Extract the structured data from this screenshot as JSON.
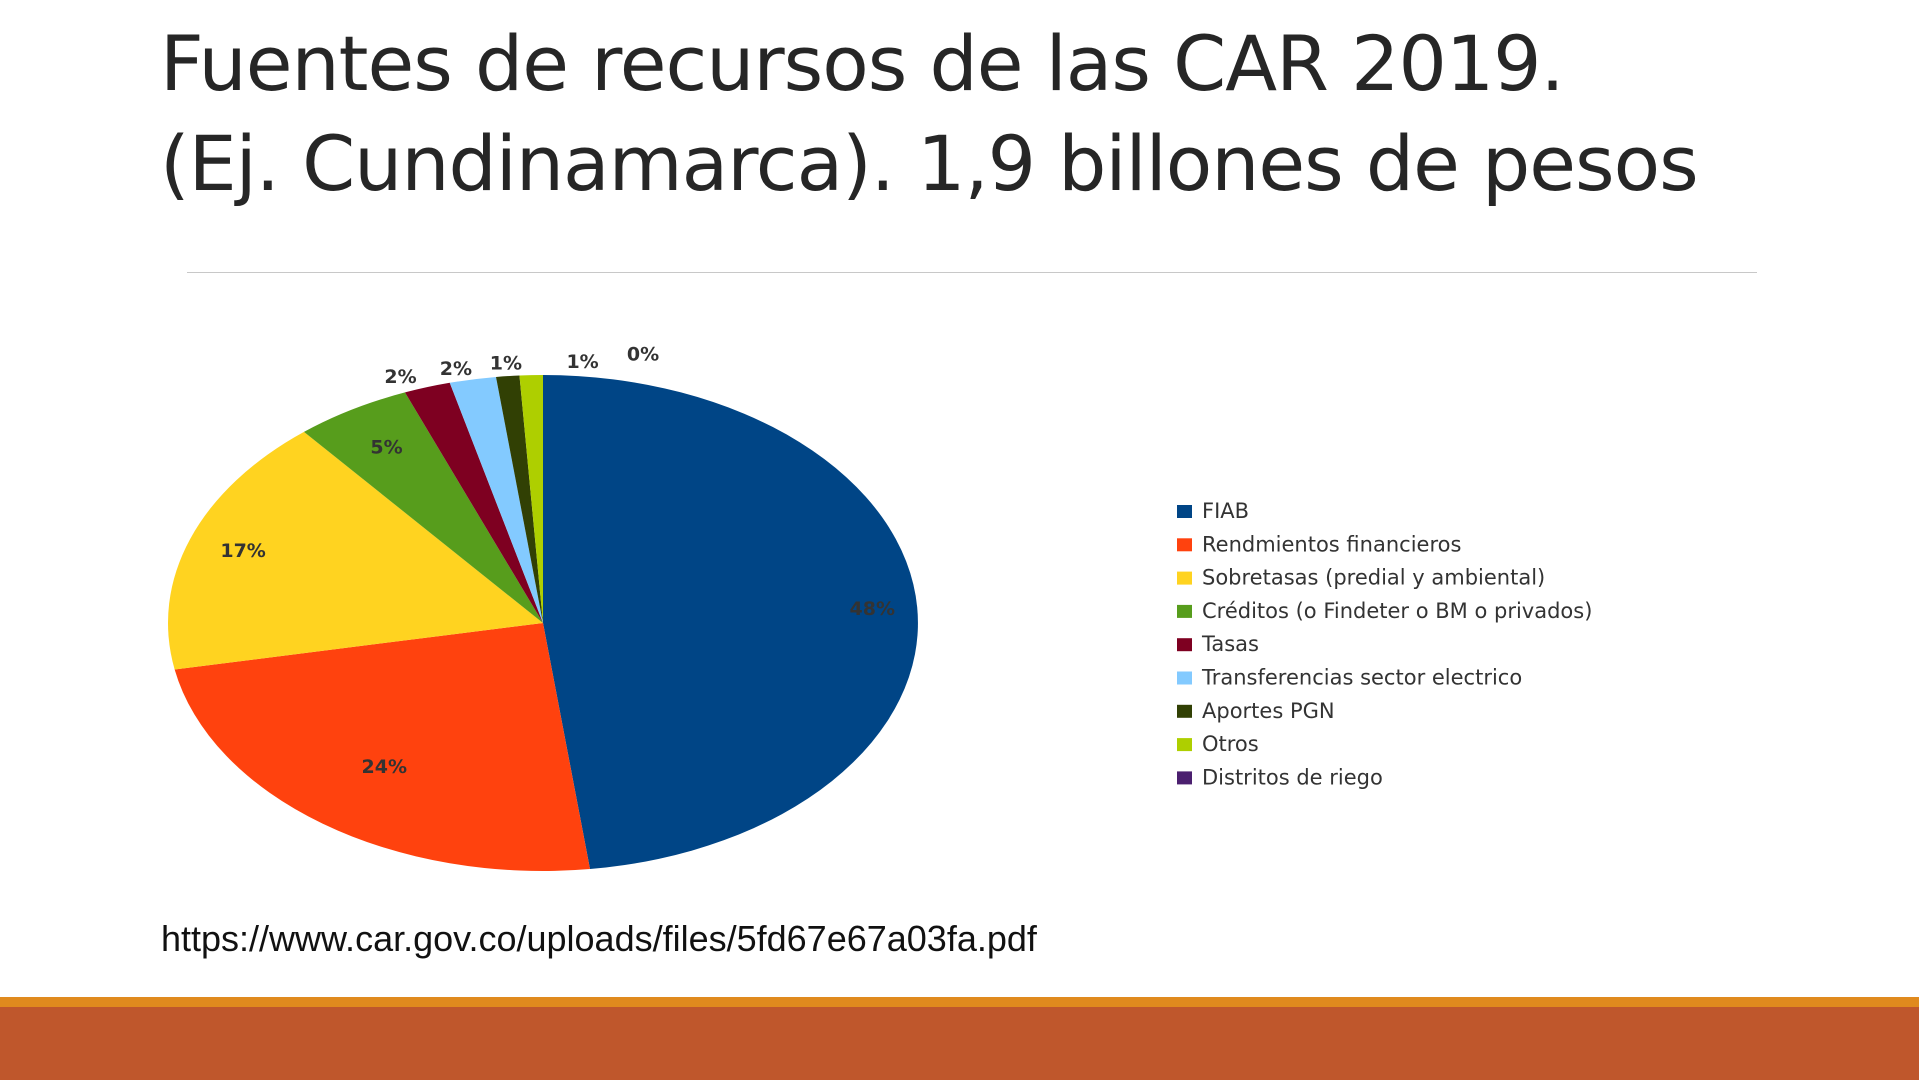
{
  "slide": {
    "title_line1": "Fuentes de recursos de las CAR 2019.",
    "title_line2": "(Ej. Cundinamarca). 1,9 billones de pesos",
    "source_url": "https://www.car.gov.co/uploads/files/5fd67e67a03fa.pdf",
    "accent_colors": {
      "thin_band": "#e08a1e",
      "thick_band": "#bf572c"
    }
  },
  "chart_data": {
    "type": "pie",
    "title": "",
    "legend_position": "right",
    "slices": [
      {
        "label": "FIAB",
        "value": 48,
        "text": "48%",
        "color": "#004586"
      },
      {
        "label": "Rendmientos financieros",
        "value": 24,
        "text": "24%",
        "color": "#ff420e"
      },
      {
        "label": "Sobretasas (predial y ambiental)",
        "value": 17,
        "text": "17%",
        "color": "#ffd320"
      },
      {
        "label": "Créditos (o Findeter o BM o privados)",
        "value": 5,
        "text": "5%",
        "color": "#579d1c"
      },
      {
        "label": "Tasas",
        "value": 2,
        "text": "2%",
        "color": "#7e0021"
      },
      {
        "label": "Transferencias sector electrico",
        "value": 2,
        "text": "2%",
        "color": "#83caff"
      },
      {
        "label": "Aportes PGN",
        "value": 1,
        "text": "1%",
        "color": "#314004"
      },
      {
        "label": "Otros",
        "value": 1,
        "text": "1%",
        "color": "#aecf00"
      },
      {
        "label": "Distritos de riego",
        "value": 0,
        "text": "0%",
        "color": "#4b1f6f"
      }
    ]
  }
}
